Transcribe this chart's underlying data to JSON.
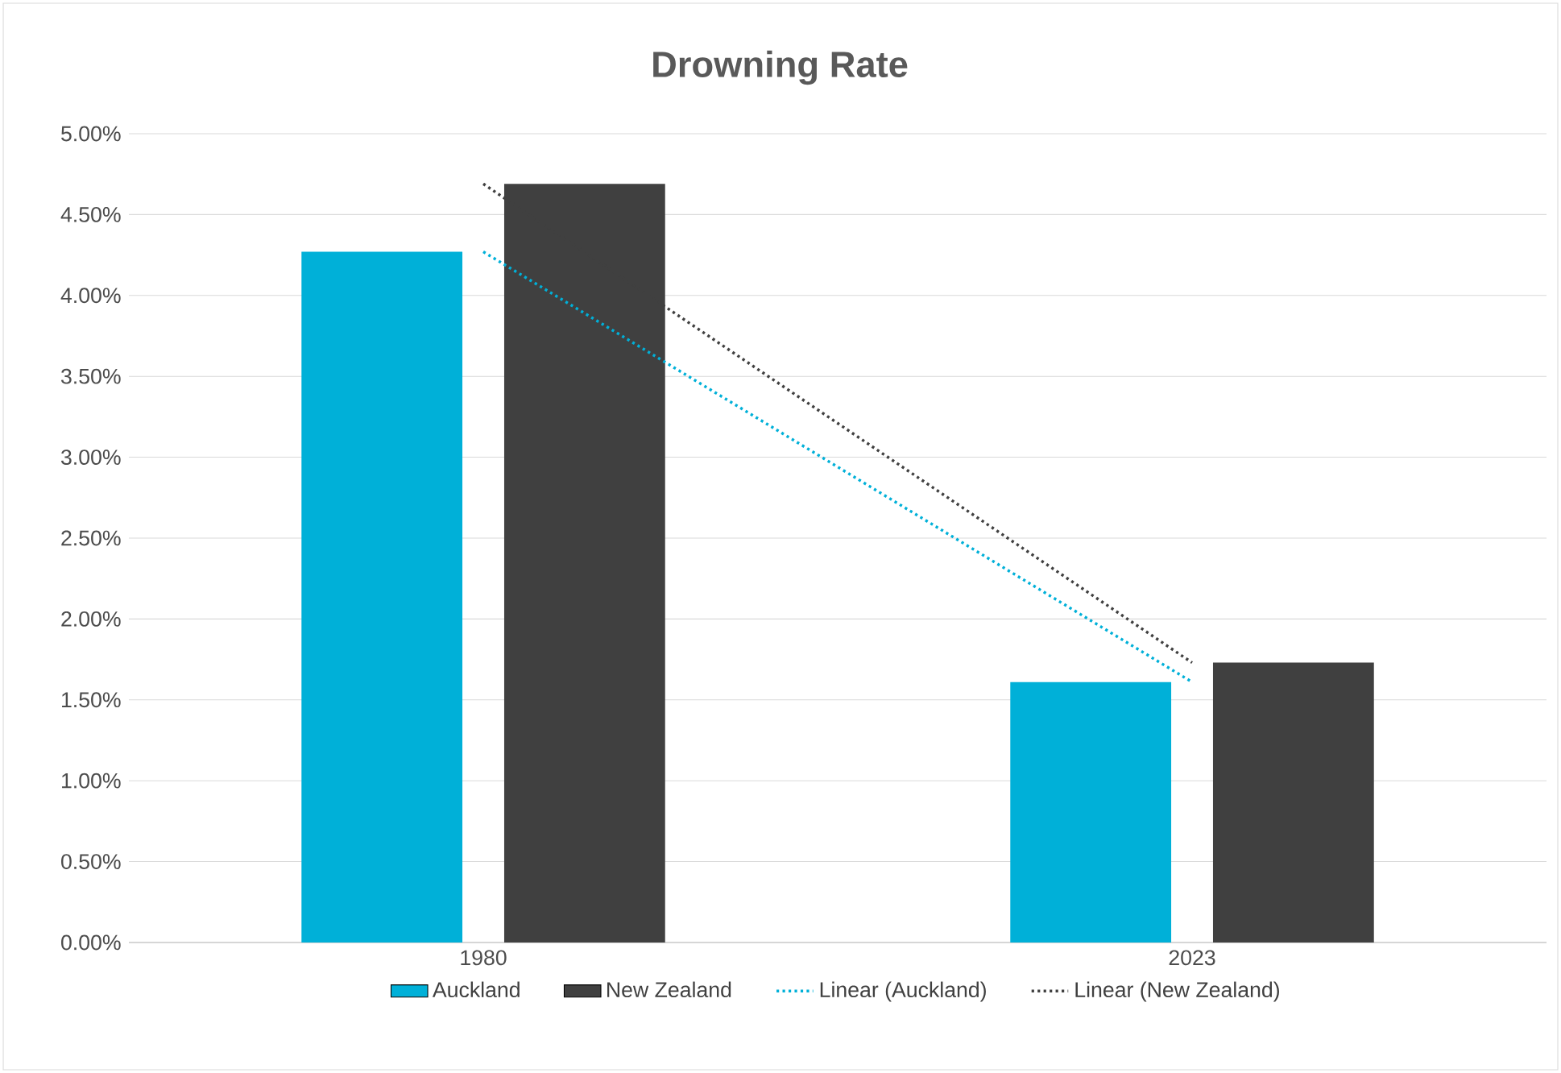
{
  "chart_data": {
    "type": "bar",
    "title": "Drowning Rate",
    "categories": [
      "1980",
      "2023"
    ],
    "series": [
      {
        "name": "Auckland",
        "color": "#00b0d8",
        "values": [
          4.27,
          1.61
        ]
      },
      {
        "name": "New Zealand",
        "color": "#404040",
        "values": [
          4.69,
          1.73
        ]
      },
      {
        "name": "Linear (Auckland)",
        "type": "line",
        "line_style": "dotted",
        "color": "#00b0d8",
        "values": [
          4.27,
          1.61
        ]
      },
      {
        "name": "Linear (New Zealand)",
        "type": "line",
        "line_style": "dotted",
        "color": "#404040",
        "values": [
          4.69,
          1.73
        ]
      }
    ],
    "ylim": [
      0,
      5
    ],
    "yticks": [
      {
        "value": 0,
        "label": "0.00%"
      },
      {
        "value": 0.5,
        "label": "0.50%"
      },
      {
        "value": 1,
        "label": "1.00%"
      },
      {
        "value": 1.5,
        "label": "1.50%"
      },
      {
        "value": 2,
        "label": "2.00%"
      },
      {
        "value": 2.5,
        "label": "2.50%"
      },
      {
        "value": 3,
        "label": "3.00%"
      },
      {
        "value": 3.5,
        "label": "3.50%"
      },
      {
        "value": 4,
        "label": "4.00%"
      },
      {
        "value": 4.5,
        "label": "4.50%"
      },
      {
        "value": 5,
        "label": "5.00%"
      }
    ],
    "grid": "y",
    "legend": "bottom"
  }
}
